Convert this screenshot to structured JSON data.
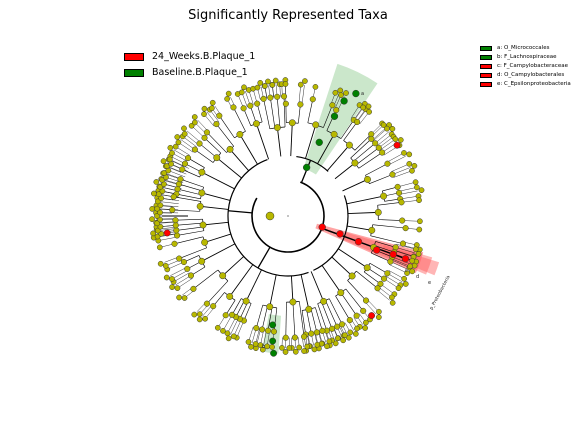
{
  "title": "Significantly Represented Taxa",
  "colors": {
    "red": "#ff0000",
    "green": "#008000",
    "node_yellow": "#b8b800",
    "red_fill": "#ff5a5a",
    "green_fill": "#8cc98c"
  },
  "legend_main": [
    {
      "label": "24_Weeks.B.Plaque_1",
      "color": "#ff0000"
    },
    {
      "label": "Baseline.B.Plaque_1",
      "color": "#008000"
    }
  ],
  "legend_clades": [
    {
      "label": "a: O_Micrococcales",
      "color": "#008000"
    },
    {
      "label": "b: F_Lachnospiraceae",
      "color": "#008000"
    },
    {
      "label": "c: F_Campylobacteraceae",
      "color": "#ff0000"
    },
    {
      "label": "d: O_Campylobacterales",
      "color": "#ff0000"
    },
    {
      "label": "e: C_Epsilonproteobacteria",
      "color": "#ff0000"
    }
  ],
  "clade_labels": {
    "a": "a",
    "b": "b",
    "c": "c",
    "d": "d",
    "e": "e",
    "phylum": "p_Proteobacteria"
  }
}
